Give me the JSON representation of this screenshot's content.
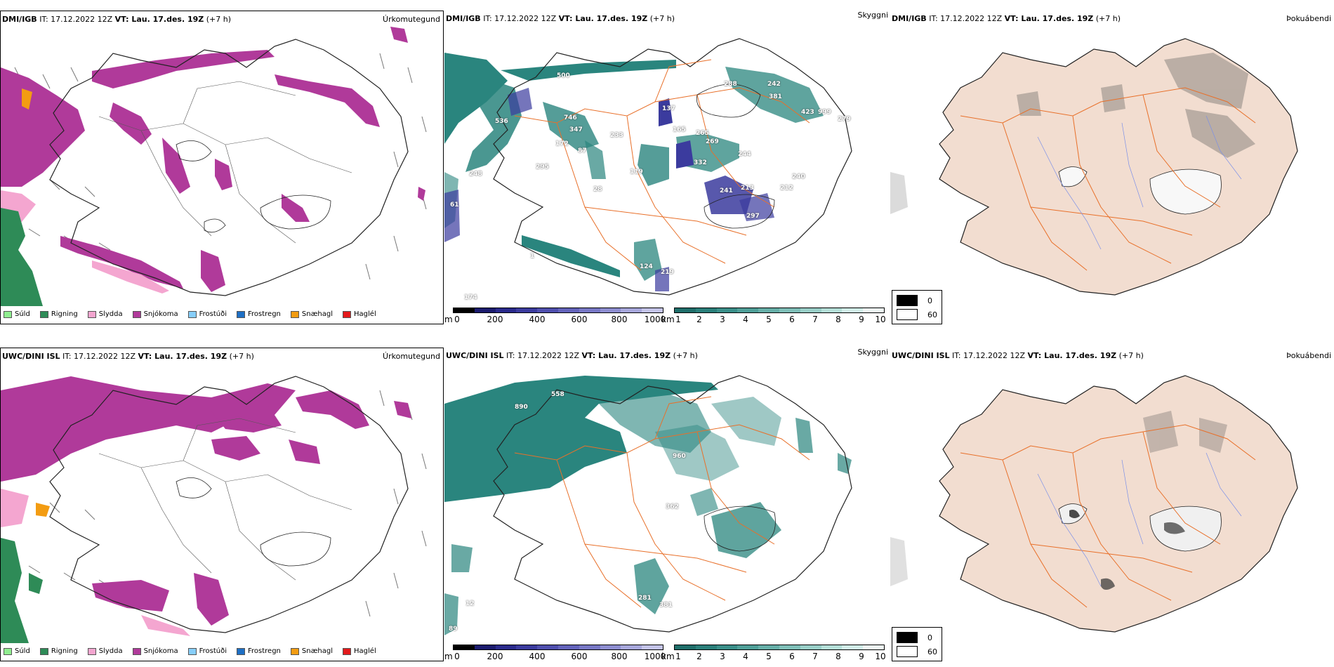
{
  "panels": {
    "dmi_precip": {
      "model": "DMI/IGB",
      "it": "IT: 17.12.2022 12Z",
      "vt_label": "VT: Lau. 17.des. 19Z",
      "lead": "(+7 h)",
      "title": "Úrkomutegund"
    },
    "dmi_cloud": {
      "model": "DMI/IGB",
      "it": "IT: 17.12.2022 12Z",
      "vt_label": "VT: Lau. 17.des. 19Z",
      "lead": "(+7 h)",
      "title": "Skyggni",
      "labels": [
        "500",
        "536",
        "746",
        "347",
        "172",
        "87",
        "295",
        "248",
        "61",
        "174",
        "233",
        "165",
        "265",
        "269",
        "137",
        "244",
        "332",
        "212",
        "241",
        "213",
        "297",
        "242",
        "381",
        "423",
        "999",
        "279",
        "240",
        "288",
        "124",
        "219",
        "119",
        "28",
        "1"
      ]
    },
    "dmi_fog": {
      "model": "DMI/IGB",
      "it": "IT: 17.12.2022 12Z",
      "vt_label": "VT: Lau. 17.des. 19Z",
      "lead": "(+7 h)",
      "title": "Þokuábendi"
    },
    "uwc_precip": {
      "model": "UWC/DINI ISL",
      "it": "IT: 17.12.2022 12Z",
      "vt_label": "VT: Lau. 17.des. 19Z",
      "lead": "(+7 h)",
      "title": "Úrkomutegund"
    },
    "uwc_cloud": {
      "model": "UWC/DINI ISL",
      "it": "IT: 17.12.2022 12Z",
      "vt_label": "VT: Lau. 17.des. 19Z",
      "lead": "(+7 h)",
      "title": "Skyggni",
      "labels": [
        "558",
        "890",
        "960",
        "362",
        "281",
        "381",
        "12",
        "89"
      ]
    },
    "uwc_fog": {
      "model": "UWC/DINI ISL",
      "it": "IT: 17.12.2022 12Z",
      "vt_label": "VT: Lau. 17.des. 19Z",
      "lead": "(+7 h)",
      "title": "Þokuábendi"
    }
  },
  "precip_legend": [
    {
      "label": "Súld",
      "color": "#90ee90"
    },
    {
      "label": "Rigning",
      "color": "#2e8b57"
    },
    {
      "label": "Slydda",
      "color": "#f4a6d0"
    },
    {
      "label": "Snjókoma",
      "color": "#b03a9a"
    },
    {
      "label": "Frostúði",
      "color": "#87cefa"
    },
    {
      "label": "Frostregn",
      "color": "#1e6fc4"
    },
    {
      "label": "Snæhagl",
      "color": "#f39c12"
    },
    {
      "label": "Haglél",
      "color": "#e31a1c"
    }
  ],
  "ceiling_bar": {
    "unit": "m",
    "ticks": [
      "0",
      "200",
      "400",
      "600",
      "800",
      "1000"
    ],
    "colors": [
      "#000000",
      "#1b1b6e",
      "#2a2a8c",
      "#3b3b9e",
      "#4f4fae",
      "#6363bb",
      "#7878c6",
      "#8e8ed1",
      "#a8a8dc",
      "#c4c4e8"
    ]
  },
  "visibility_bar": {
    "unit": "km",
    "ticks": [
      "1",
      "2",
      "3",
      "4",
      "5",
      "6",
      "7",
      "8",
      "9",
      "10"
    ],
    "colors": [
      "#1f6e6a",
      "#2a7f7a",
      "#3a8f89",
      "#4f9f98",
      "#66afa8",
      "#7fbfb8",
      "#99cfc8",
      "#b5dfd8",
      "#d2ede8",
      "#eef8f6"
    ]
  },
  "fog_legend": [
    {
      "value": "0",
      "color": "#000000"
    },
    {
      "value": "60",
      "color": "#ffffff"
    }
  ],
  "colors": {
    "land_fog": "#f2ddd0",
    "snow": "#b03a9a",
    "teal": "#2a857e",
    "roads": "#e8702a",
    "rivers": "#7a8fe8"
  }
}
